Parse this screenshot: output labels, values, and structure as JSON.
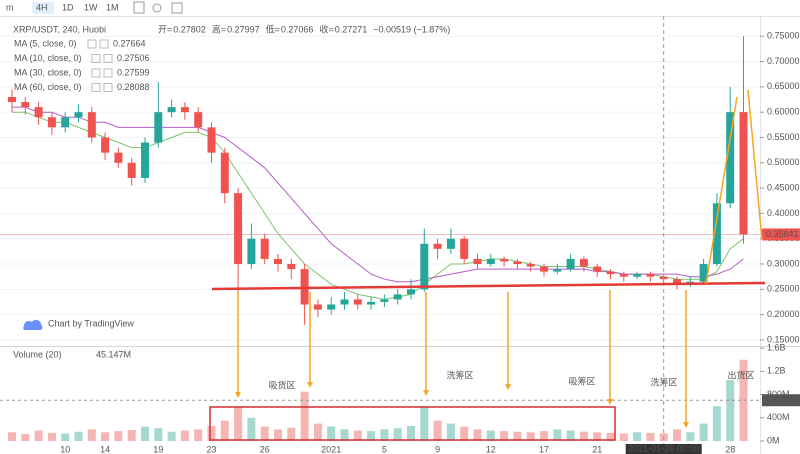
{
  "toolbar": {
    "items": [
      "m",
      "4H",
      "1D",
      "1W",
      "1M"
    ]
  },
  "chart_data": {
    "type": "candlestick",
    "title": "XRP/USDT, 240, Huobi",
    "ohlc_legend": [
      {
        "label": "开=",
        "value": "0.27802"
      },
      {
        "label": "高=",
        "value": "0.27997"
      },
      {
        "label": "低=",
        "value": "0.27066"
      },
      {
        "label": "收=",
        "value": "0.27271"
      }
    ],
    "change": "−0.00519 (−1.87%)",
    "watermark": "Chart by TradingView",
    "up_color": "#26a69a",
    "down_color": "#ef5350",
    "categories": [
      null,
      null,
      null,
      null,
      "10",
      null,
      null,
      "14",
      null,
      null,
      null,
      "19",
      null,
      null,
      null,
      "23",
      null,
      null,
      null,
      "26",
      null,
      null,
      null,
      null,
      "2021",
      null,
      null,
      null,
      "5",
      null,
      null,
      null,
      "9",
      null,
      null,
      null,
      "12",
      null,
      null,
      null,
      "17",
      null,
      null,
      null,
      "21",
      null,
      null,
      null,
      null,
      "2021-01-26 00:00",
      null,
      null,
      null,
      null,
      "28",
      null
    ],
    "open": [
      0.63,
      0.62,
      0.61,
      0.59,
      0.57,
      0.59,
      0.6,
      0.55,
      0.52,
      0.5,
      0.47,
      0.54,
      0.6,
      0.61,
      0.6,
      0.57,
      0.52,
      0.44,
      0.3,
      0.35,
      0.31,
      0.3,
      0.29,
      0.22,
      0.21,
      0.22,
      0.23,
      0.22,
      0.225,
      0.23,
      0.24,
      0.25,
      0.34,
      0.33,
      0.35,
      0.31,
      0.3,
      0.31,
      0.305,
      0.3,
      0.295,
      0.285,
      0.29,
      0.31,
      0.295,
      0.285,
      0.28,
      0.275,
      0.28,
      0.275,
      0.27,
      0.26,
      0.265,
      0.3,
      0.42,
      0.6
    ],
    "high": [
      0.645,
      0.63,
      0.62,
      0.6,
      0.6,
      0.615,
      0.61,
      0.56,
      0.53,
      0.51,
      0.55,
      0.66,
      0.625,
      0.62,
      0.61,
      0.58,
      0.53,
      0.45,
      0.38,
      0.36,
      0.32,
      0.31,
      0.3,
      0.23,
      0.235,
      0.245,
      0.24,
      0.235,
      0.24,
      0.25,
      0.27,
      0.37,
      0.35,
      0.37,
      0.355,
      0.32,
      0.32,
      0.315,
      0.31,
      0.305,
      0.3,
      0.3,
      0.32,
      0.315,
      0.3,
      0.29,
      0.285,
      0.285,
      0.285,
      0.28,
      0.275,
      0.275,
      0.31,
      0.44,
      0.65,
      0.75
    ],
    "low": [
      0.6,
      0.595,
      0.575,
      0.555,
      0.56,
      0.58,
      0.54,
      0.505,
      0.49,
      0.455,
      0.46,
      0.53,
      0.59,
      0.585,
      0.56,
      0.5,
      0.42,
      0.24,
      0.29,
      0.3,
      0.285,
      0.27,
      0.18,
      0.195,
      0.2,
      0.21,
      0.21,
      0.21,
      0.215,
      0.22,
      0.23,
      0.245,
      0.31,
      0.32,
      0.3,
      0.29,
      0.295,
      0.295,
      0.29,
      0.285,
      0.275,
      0.28,
      0.285,
      0.285,
      0.275,
      0.27,
      0.265,
      0.27,
      0.265,
      0.26,
      0.25,
      0.255,
      0.26,
      0.295,
      0.41,
      0.34
    ],
    "close": [
      0.62,
      0.61,
      0.59,
      0.57,
      0.59,
      0.6,
      0.55,
      0.52,
      0.5,
      0.47,
      0.54,
      0.6,
      0.61,
      0.6,
      0.57,
      0.52,
      0.44,
      0.3,
      0.35,
      0.31,
      0.3,
      0.29,
      0.22,
      0.21,
      0.22,
      0.23,
      0.22,
      0.225,
      0.23,
      0.24,
      0.25,
      0.34,
      0.33,
      0.35,
      0.31,
      0.3,
      0.31,
      0.305,
      0.3,
      0.295,
      0.285,
      0.29,
      0.31,
      0.295,
      0.285,
      0.28,
      0.275,
      0.28,
      0.275,
      0.27,
      0.26,
      0.265,
      0.3,
      0.42,
      0.6,
      0.35841
    ],
    "last_price": 0.35841,
    "ylim": [
      0.14,
      0.79
    ],
    "yticks": [
      {
        "value": 0.15,
        "label": "0.15000"
      },
      {
        "value": 0.2,
        "label": "0.20000"
      },
      {
        "value": 0.25,
        "label": "0.25000"
      },
      {
        "value": 0.3,
        "label": "0.30000"
      },
      {
        "value": 0.35,
        "label": "0.35000"
      },
      {
        "value": 0.4,
        "label": "0.40000"
      },
      {
        "value": 0.45,
        "label": "0.45000"
      },
      {
        "value": 0.5,
        "label": "0.50000"
      },
      {
        "value": 0.55,
        "label": "0.55000"
      },
      {
        "value": 0.6,
        "label": "0.60000"
      },
      {
        "value": 0.65,
        "label": "0.65000"
      },
      {
        "value": 0.7,
        "label": "0.70000"
      },
      {
        "value": 0.75,
        "label": "0.75000"
      }
    ],
    "ma": [
      {
        "name": "MA (5, close, 0)",
        "last": "0.27664",
        "color": "#e040fb"
      },
      {
        "name": "MA (10, close, 0)",
        "last": "0.27506",
        "color": "#26a69a"
      },
      {
        "name": "MA (30, close, 0)",
        "last": "0.27599",
        "color": "#7cc46b",
        "values": [
          0.6,
          0.6,
          0.59,
          0.58,
          0.58,
          0.57,
          0.56,
          0.55,
          0.54,
          0.53,
          0.53,
          0.54,
          0.55,
          0.56,
          0.56,
          0.55,
          0.52,
          0.48,
          0.44,
          0.4,
          0.36,
          0.33,
          0.3,
          0.28,
          0.26,
          0.25,
          0.24,
          0.235,
          0.23,
          0.235,
          0.24,
          0.26,
          0.28,
          0.3,
          0.3,
          0.305,
          0.31,
          0.31,
          0.305,
          0.3,
          0.295,
          0.295,
          0.295,
          0.295,
          0.29,
          0.285,
          0.28,
          0.28,
          0.28,
          0.275,
          0.27,
          0.27,
          0.27,
          0.285,
          0.33,
          0.35
        ]
      },
      {
        "name": "MA (60, close, 0)",
        "last": "0.28088",
        "color": "#b45cc8",
        "values": [
          0.61,
          0.61,
          0.6,
          0.6,
          0.59,
          0.59,
          0.58,
          0.58,
          0.57,
          0.57,
          0.57,
          0.57,
          0.57,
          0.57,
          0.57,
          0.56,
          0.55,
          0.53,
          0.51,
          0.49,
          0.46,
          0.43,
          0.4,
          0.37,
          0.34,
          0.32,
          0.3,
          0.28,
          0.27,
          0.265,
          0.265,
          0.27,
          0.275,
          0.28,
          0.285,
          0.29,
          0.29,
          0.29,
          0.29,
          0.29,
          0.29,
          0.29,
          0.29,
          0.29,
          0.285,
          0.285,
          0.28,
          0.28,
          0.28,
          0.28,
          0.28,
          0.275,
          0.275,
          0.28,
          0.29,
          0.31
        ]
      }
    ],
    "volume_title": "Volume (20)",
    "volume_last": "45.147M",
    "volume": [
      150000000,
      120000000,
      180000000,
      140000000,
      130000000,
      160000000,
      200000000,
      150000000,
      170000000,
      190000000,
      250000000,
      220000000,
      160000000,
      180000000,
      200000000,
      260000000,
      350000000,
      600000000,
      400000000,
      250000000,
      200000000,
      230000000,
      850000000,
      300000000,
      250000000,
      200000000,
      180000000,
      170000000,
      200000000,
      220000000,
      260000000,
      600000000,
      350000000,
      300000000,
      250000000,
      200000000,
      180000000,
      170000000,
      160000000,
      150000000,
      170000000,
      200000000,
      180000000,
      160000000,
      150000000,
      140000000,
      130000000,
      150000000,
      140000000,
      130000000,
      200000000,
      150000000,
      300000000,
      600000000,
      1050000000,
      1400000000
    ],
    "volume_ylim": [
      0,
      1620000000
    ],
    "volume_ticks": [
      {
        "value": 0,
        "label": "0M"
      },
      {
        "value": 400000000,
        "label": "400M"
      },
      {
        "value": 800000000,
        "label": "800M"
      },
      {
        "value": 1200000000,
        "label": "1.2B"
      },
      {
        "value": 1600000000,
        "label": "1.6B"
      }
    ],
    "volume_marker": {
      "value": 702408000,
      "label": "702.408M"
    },
    "zones": [
      "吸货区",
      "洗筹区",
      "吸筹区",
      "洗筹区",
      "出货区"
    ]
  }
}
